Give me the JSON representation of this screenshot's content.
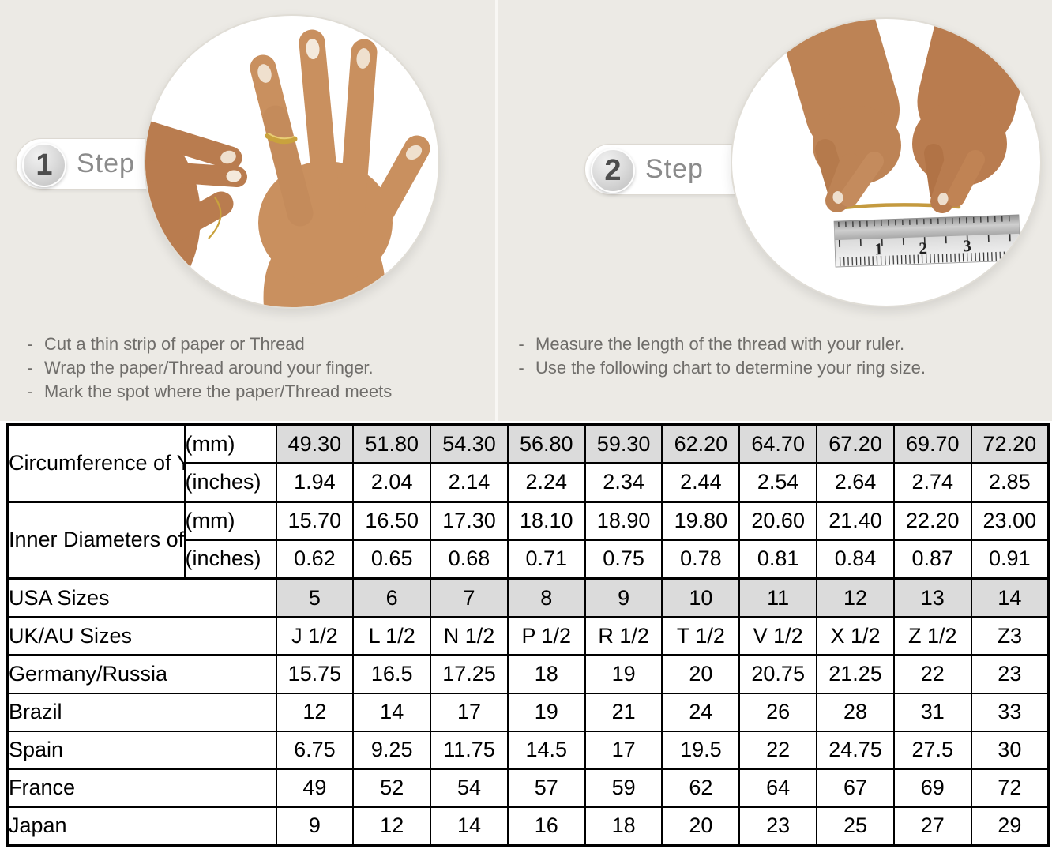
{
  "dash": "-",
  "colors": {
    "background": "#eceae5",
    "table_shaded_cell": "#dbdbdb",
    "table_border": "#000000",
    "gold_accent": "#c49a3f",
    "step_text": "#8b8b8b",
    "bullet_text": "#6f6d6a"
  },
  "steps": [
    {
      "number": "1",
      "label": "Step",
      "illustration": "hand with gold ring being pointed at",
      "bullets": [
        "Cut a thin strip of paper or Thread",
        "Wrap the paper/Thread around your finger.",
        "Mark the spot where the paper/Thread meets"
      ]
    },
    {
      "number": "2",
      "label": "Step",
      "illustration": "two hands holding thread above a ruler",
      "bullets": [
        "Measure the length of the thread with your ruler.",
        "Use the following chart to determine your ring size."
      ]
    }
  ],
  "step2_ruler": {
    "marks": [
      "1",
      "2",
      "3"
    ]
  },
  "table": {
    "groups": [
      {
        "label": "Circumference of Your Finger"
      },
      {
        "label": "Inner Diameters of Rings"
      }
    ],
    "rows": [
      {
        "group": 0,
        "unit": "(mm)",
        "shaded": true,
        "values": [
          "49.30",
          "51.80",
          "54.30",
          "56.80",
          "59.30",
          "62.20",
          "64.70",
          "67.20",
          "69.70",
          "72.20"
        ]
      },
      {
        "group": 0,
        "unit": "(inches)",
        "values": [
          "1.94",
          "2.04",
          "2.14",
          "2.24",
          "2.34",
          "2.44",
          "2.54",
          "2.64",
          "2.74",
          "2.85"
        ]
      },
      {
        "group": 1,
        "unit": "(mm)",
        "values": [
          "15.70",
          "16.50",
          "17.30",
          "18.10",
          "18.90",
          "19.80",
          "20.60",
          "21.40",
          "22.20",
          "23.00"
        ]
      },
      {
        "group": 1,
        "unit": "(inches)",
        "values": [
          "0.62",
          "0.65",
          "0.68",
          "0.71",
          "0.75",
          "0.78",
          "0.81",
          "0.84",
          "0.87",
          "0.91"
        ]
      },
      {
        "label": "USA Sizes",
        "shaded": true,
        "values": [
          "5",
          "6",
          "7",
          "8",
          "9",
          "10",
          "11",
          "12",
          "13",
          "14"
        ]
      },
      {
        "label": "UK/AU Sizes",
        "values": [
          "J 1/2",
          "L 1/2",
          "N 1/2",
          "P 1/2",
          "R 1/2",
          "T 1/2",
          "V 1/2",
          "X 1/2",
          "Z 1/2",
          "Z3"
        ]
      },
      {
        "label": "Germany/Russia",
        "values": [
          "15.75",
          "16.5",
          "17.25",
          "18",
          "19",
          "20",
          "20.75",
          "21.25",
          "22",
          "23"
        ]
      },
      {
        "label": "Brazil",
        "values": [
          "12",
          "14",
          "17",
          "19",
          "21",
          "24",
          "26",
          "28",
          "31",
          "33"
        ]
      },
      {
        "label": "Spain",
        "values": [
          "6.75",
          "9.25",
          "11.75",
          "14.5",
          "17",
          "19.5",
          "22",
          "24.75",
          "27.5",
          "30"
        ]
      },
      {
        "label": "France",
        "values": [
          "49",
          "52",
          "54",
          "57",
          "59",
          "62",
          "64",
          "67",
          "69",
          "72"
        ]
      },
      {
        "label": "Japan",
        "values": [
          "9",
          "12",
          "14",
          "16",
          "18",
          "20",
          "23",
          "25",
          "27",
          "29"
        ]
      }
    ]
  }
}
